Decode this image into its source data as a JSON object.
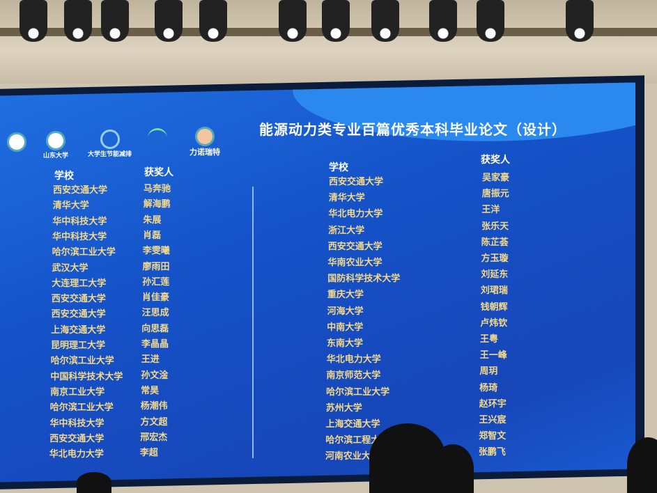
{
  "title": "能源动力类专业百篇优秀本科毕业论文（设计）",
  "logos": [
    "山东大学",
    "大学生节能减排",
    "力诺瑞特"
  ],
  "left": {
    "school_header": "学校",
    "winner_header": "获奖人",
    "rows": [
      [
        "西安交通大学",
        "马奔驰"
      ],
      [
        "清华大学",
        "解海鹏"
      ],
      [
        "华中科技大学",
        "朱展"
      ],
      [
        "华中科技大学",
        "肖磊"
      ],
      [
        "哈尔滨工业大学",
        "李雯曦"
      ],
      [
        "武汉大学",
        "廖雨田"
      ],
      [
        "大连理工大学",
        "孙汇莲"
      ],
      [
        "西安交通大学",
        "肖佳豪"
      ],
      [
        "西安交通大学",
        "汪思成"
      ],
      [
        "上海交通大学",
        "向思磊"
      ],
      [
        "昆明理工大学",
        "李晶晶"
      ],
      [
        "哈尔滨工业大学",
        "王进"
      ],
      [
        "中国科学技术大学",
        "孙文淦"
      ],
      [
        "南京工业大学",
        "常昊"
      ],
      [
        "哈尔滨工业大学",
        "杨潮伟"
      ],
      [
        "华中科技大学",
        "方文超"
      ],
      [
        "西安交通大学",
        "邢宏杰"
      ],
      [
        "华北电力大学",
        "李超"
      ]
    ]
  },
  "right": {
    "school_header": "学校",
    "winner_header": "获奖人",
    "rows": [
      [
        "西安交通大学",
        "吴家豪"
      ],
      [
        "清华大学",
        "唐振元"
      ],
      [
        "华北电力大学",
        "王洋"
      ],
      [
        "浙江大学",
        "张乐天"
      ],
      [
        "西安交通大学",
        "陈芷荟"
      ],
      [
        "华南农业大学",
        "方玉璇"
      ],
      [
        "国防科学技术大学",
        "刘延东"
      ],
      [
        "重庆大学",
        "刘珺瑞"
      ],
      [
        "河海大学",
        "钱朝辉"
      ],
      [
        "中南大学",
        "卢炜钦"
      ],
      [
        "东南大学",
        "王粤"
      ],
      [
        "华北电力大学",
        "王一峰"
      ],
      [
        "南京师范大学",
        "周玥"
      ],
      [
        "哈尔滨工业大学",
        "杨琦"
      ],
      [
        "苏州大学",
        "赵环宇"
      ],
      [
        "上海交通大学",
        "王兴宸"
      ],
      [
        "哈尔滨工程大学",
        "郑智文"
      ],
      [
        "河南农业大学",
        "张鹏飞"
      ]
    ]
  }
}
